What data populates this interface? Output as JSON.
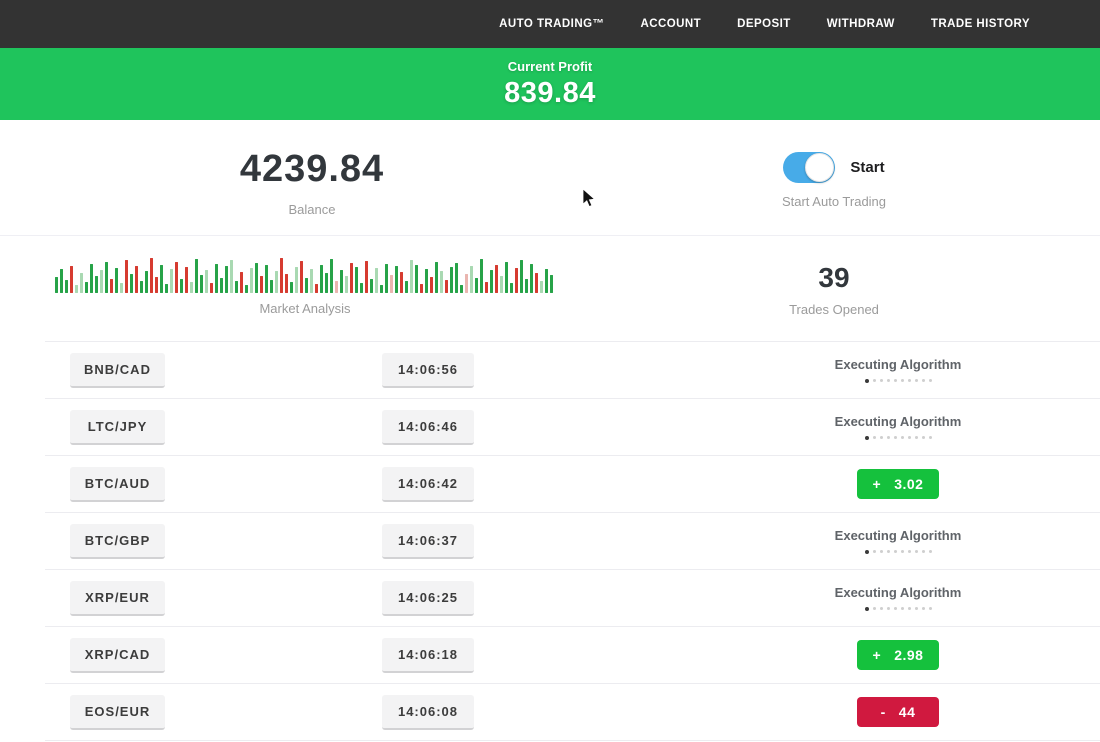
{
  "nav": {
    "items": [
      "AUTO TRADING™",
      "ACCOUNT",
      "DEPOSIT",
      "WITHDRAW",
      "TRADE HISTORY"
    ]
  },
  "banner": {
    "label": "Current Profit",
    "value": "839.84"
  },
  "summary": {
    "balance_value": "4239.84",
    "balance_label": "Balance",
    "toggle_label": "Start",
    "toggle_caption": "Start Auto Trading",
    "toggle_on": true,
    "trades_opened_value": "39",
    "trades_opened_label": "Trades Opened",
    "market_label": "Market Analysis"
  },
  "colors": {
    "banner_green": "#1fc45c",
    "profit_badge": "#15c13d",
    "loss_badge": "#d0193f",
    "toggle_blue": "#47abe8"
  },
  "market_analysis": {
    "type": "bar",
    "note": "decorative candlestick-style volume strip, bottom-aligned bars [height_px, color_key]",
    "colors": {
      "g": "#27a348",
      "r": "#d63b30",
      "G": "#a9d9b2",
      "R": "#eab5af"
    },
    "bars": [
      [
        16,
        "g"
      ],
      [
        24,
        "g"
      ],
      [
        13,
        "g"
      ],
      [
        27,
        "r"
      ],
      [
        8,
        "G"
      ],
      [
        20,
        "G"
      ],
      [
        11,
        "g"
      ],
      [
        29,
        "g"
      ],
      [
        17,
        "g"
      ],
      [
        23,
        "G"
      ],
      [
        31,
        "g"
      ],
      [
        14,
        "r"
      ],
      [
        25,
        "g"
      ],
      [
        10,
        "G"
      ],
      [
        33,
        "r"
      ],
      [
        19,
        "g"
      ],
      [
        27,
        "r"
      ],
      [
        12,
        "g"
      ],
      [
        22,
        "g"
      ],
      [
        35,
        "r"
      ],
      [
        16,
        "r"
      ],
      [
        28,
        "g"
      ],
      [
        9,
        "g"
      ],
      [
        24,
        "G"
      ],
      [
        31,
        "r"
      ],
      [
        14,
        "g"
      ],
      [
        26,
        "r"
      ],
      [
        11,
        "G"
      ],
      [
        34,
        "g"
      ],
      [
        18,
        "g"
      ],
      [
        23,
        "G"
      ],
      [
        10,
        "r"
      ],
      [
        29,
        "g"
      ],
      [
        15,
        "g"
      ],
      [
        27,
        "g"
      ],
      [
        33,
        "G"
      ],
      [
        12,
        "g"
      ],
      [
        21,
        "r"
      ],
      [
        8,
        "g"
      ],
      [
        25,
        "G"
      ],
      [
        30,
        "g"
      ],
      [
        17,
        "r"
      ],
      [
        28,
        "g"
      ],
      [
        13,
        "g"
      ],
      [
        22,
        "G"
      ],
      [
        35,
        "r"
      ],
      [
        19,
        "r"
      ],
      [
        11,
        "g"
      ],
      [
        26,
        "G"
      ],
      [
        32,
        "r"
      ],
      [
        15,
        "g"
      ],
      [
        24,
        "G"
      ],
      [
        9,
        "r"
      ],
      [
        28,
        "g"
      ],
      [
        20,
        "g"
      ],
      [
        34,
        "g"
      ],
      [
        12,
        "R"
      ],
      [
        23,
        "g"
      ],
      [
        17,
        "G"
      ],
      [
        30,
        "r"
      ],
      [
        26,
        "g"
      ],
      [
        10,
        "g"
      ],
      [
        32,
        "r"
      ],
      [
        14,
        "g"
      ],
      [
        25,
        "G"
      ],
      [
        8,
        "g"
      ],
      [
        29,
        "g"
      ],
      [
        18,
        "R"
      ],
      [
        27,
        "g"
      ],
      [
        21,
        "r"
      ],
      [
        12,
        "g"
      ],
      [
        33,
        "G"
      ],
      [
        28,
        "g"
      ],
      [
        9,
        "r"
      ],
      [
        24,
        "g"
      ],
      [
        16,
        "r"
      ],
      [
        31,
        "g"
      ],
      [
        22,
        "G"
      ],
      [
        13,
        "r"
      ],
      [
        26,
        "g"
      ],
      [
        30,
        "g"
      ],
      [
        8,
        "g"
      ],
      [
        19,
        "R"
      ],
      [
        27,
        "G"
      ],
      [
        15,
        "g"
      ],
      [
        34,
        "g"
      ],
      [
        11,
        "r"
      ],
      [
        23,
        "g"
      ],
      [
        28,
        "r"
      ],
      [
        17,
        "G"
      ],
      [
        31,
        "g"
      ],
      [
        10,
        "g"
      ],
      [
        25,
        "r"
      ],
      [
        33,
        "g"
      ],
      [
        14,
        "g"
      ],
      [
        29,
        "g"
      ],
      [
        20,
        "r"
      ],
      [
        12,
        "G"
      ],
      [
        24,
        "g"
      ],
      [
        18,
        "g"
      ]
    ]
  },
  "executing_dots_count": 10,
  "trades": [
    {
      "pair": "BNB/CAD",
      "time": "14:06:56",
      "status": "executing",
      "status_label": "Executing Algorithm"
    },
    {
      "pair": "LTC/JPY",
      "time": "14:06:46",
      "status": "executing",
      "status_label": "Executing Algorithm"
    },
    {
      "pair": "BTC/AUD",
      "time": "14:06:42",
      "status": "profit",
      "sign": "+",
      "amount": "3.02"
    },
    {
      "pair": "BTC/GBP",
      "time": "14:06:37",
      "status": "executing",
      "status_label": "Executing Algorithm"
    },
    {
      "pair": "XRP/EUR",
      "time": "14:06:25",
      "status": "executing",
      "status_label": "Executing Algorithm"
    },
    {
      "pair": "XRP/CAD",
      "time": "14:06:18",
      "status": "profit",
      "sign": "+",
      "amount": "2.98"
    },
    {
      "pair": "EOS/EUR",
      "time": "14:06:08",
      "status": "loss",
      "sign": "-",
      "amount": "44"
    }
  ]
}
